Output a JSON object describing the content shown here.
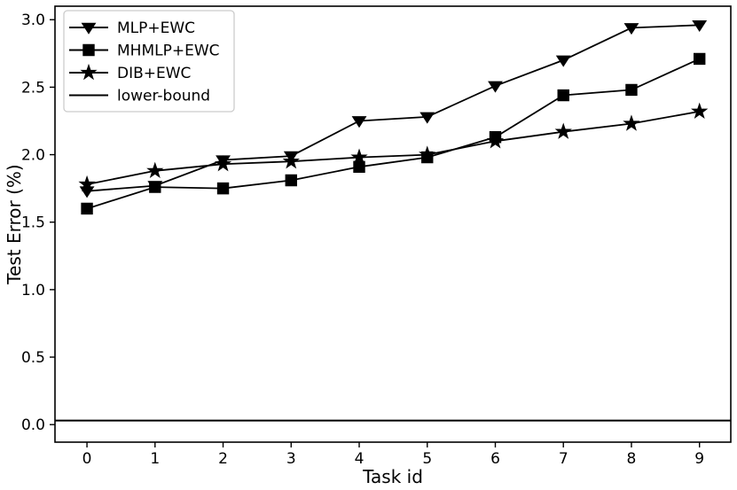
{
  "figure": {
    "background": "#ffffff",
    "line_color": "#000000",
    "legend_border_color": "#cccccc"
  },
  "chart_data": {
    "type": "line",
    "title": "",
    "xlabel": "Task id",
    "ylabel": "Test Error (%)",
    "grid": false,
    "legend_position": "upper-left",
    "x": [
      0,
      1,
      2,
      3,
      4,
      5,
      6,
      7,
      8,
      9
    ],
    "xlim": [
      -0.47,
      9.46
    ],
    "ylim": [
      -0.13,
      3.1
    ],
    "xticks": [
      0,
      1,
      2,
      3,
      4,
      5,
      6,
      7,
      8,
      9
    ],
    "xtick_labels": [
      "0",
      "1",
      "2",
      "3",
      "4",
      "5",
      "6",
      "7",
      "8",
      "9"
    ],
    "yticks": [
      0.0,
      0.5,
      1.0,
      1.5,
      2.0,
      2.5,
      3.0
    ],
    "ytick_labels": [
      "0.0",
      "0.5",
      "1.0",
      "1.5",
      "2.0",
      "2.5",
      "3.0"
    ],
    "series": [
      {
        "name": "MLP+EWC",
        "marker": "triangle-down",
        "color": "#000000",
        "values": [
          1.73,
          1.77,
          1.96,
          1.99,
          2.25,
          2.28,
          2.51,
          2.7,
          2.94,
          2.96
        ]
      },
      {
        "name": "MHMLP+EWC",
        "marker": "square",
        "color": "#000000",
        "values": [
          1.6,
          1.76,
          1.75,
          1.81,
          1.91,
          1.98,
          2.13,
          2.44,
          2.48,
          2.71
        ]
      },
      {
        "name": "DIB+EWC",
        "marker": "star",
        "color": "#000000",
        "values": [
          1.78,
          1.88,
          1.93,
          1.95,
          1.98,
          2.0,
          2.1,
          2.17,
          2.23,
          2.32
        ]
      }
    ],
    "lower_bound": {
      "name": "lower-bound",
      "value": 0.03,
      "color": "#000000"
    }
  }
}
